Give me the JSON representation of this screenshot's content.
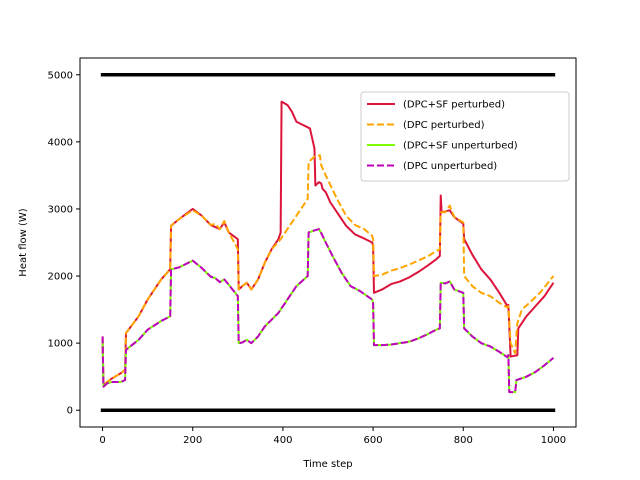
{
  "chart_data": {
    "type": "line",
    "xlabel": "Time step",
    "ylabel": "Heat flow (W)",
    "xlim": [
      -50,
      1050
    ],
    "ylim": [
      -250,
      5250
    ],
    "xticks": [
      0,
      200,
      400,
      600,
      800,
      1000
    ],
    "yticks": [
      0,
      1000,
      2000,
      3000,
      4000,
      5000
    ],
    "grid": false,
    "legend_position": "upper right",
    "bounds": [
      {
        "name": "upper bound",
        "y": 5000,
        "x": [
          0,
          1000
        ],
        "color": "#000000"
      },
      {
        "name": "lower bound",
        "y": 0,
        "x": [
          0,
          1000
        ],
        "color": "#000000"
      }
    ],
    "series": [
      {
        "name": "(DPC+SF perturbed)",
        "color": "#dc143c",
        "dash": "solid",
        "points": [
          [
            0,
            1100
          ],
          [
            2,
            380
          ],
          [
            10,
            420
          ],
          [
            20,
            470
          ],
          [
            40,
            550
          ],
          [
            50,
            600
          ],
          [
            52,
            1150
          ],
          [
            80,
            1400
          ],
          [
            100,
            1650
          ],
          [
            130,
            1950
          ],
          [
            150,
            2100
          ],
          [
            152,
            2750
          ],
          [
            170,
            2850
          ],
          [
            200,
            3000
          ],
          [
            220,
            2900
          ],
          [
            240,
            2760
          ],
          [
            260,
            2700
          ],
          [
            270,
            2800
          ],
          [
            280,
            2650
          ],
          [
            300,
            2550
          ],
          [
            302,
            1800
          ],
          [
            310,
            1850
          ],
          [
            320,
            1900
          ],
          [
            330,
            1800
          ],
          [
            345,
            1950
          ],
          [
            360,
            2200
          ],
          [
            375,
            2400
          ],
          [
            390,
            2550
          ],
          [
            395,
            2650
          ],
          [
            397,
            4600
          ],
          [
            410,
            4550
          ],
          [
            420,
            4450
          ],
          [
            430,
            4300
          ],
          [
            460,
            4200
          ],
          [
            470,
            3900
          ],
          [
            472,
            3350
          ],
          [
            480,
            3400
          ],
          [
            485,
            3380
          ],
          [
            488,
            3300
          ],
          [
            495,
            3250
          ],
          [
            505,
            3100
          ],
          [
            520,
            2950
          ],
          [
            540,
            2750
          ],
          [
            560,
            2620
          ],
          [
            580,
            2560
          ],
          [
            598,
            2500
          ],
          [
            600,
            2450
          ],
          [
            602,
            1750
          ],
          [
            620,
            1800
          ],
          [
            640,
            1880
          ],
          [
            660,
            1920
          ],
          [
            680,
            1980
          ],
          [
            700,
            2060
          ],
          [
            720,
            2150
          ],
          [
            740,
            2250
          ],
          [
            748,
            2300
          ],
          [
            750,
            3200
          ],
          [
            752,
            2950
          ],
          [
            770,
            2980
          ],
          [
            780,
            2880
          ],
          [
            800,
            2780
          ],
          [
            802,
            2550
          ],
          [
            820,
            2320
          ],
          [
            840,
            2100
          ],
          [
            860,
            1950
          ],
          [
            880,
            1750
          ],
          [
            898,
            1550
          ],
          [
            900,
            1570
          ],
          [
            905,
            800
          ],
          [
            920,
            820
          ],
          [
            922,
            1220
          ],
          [
            940,
            1400
          ],
          [
            960,
            1550
          ],
          [
            980,
            1700
          ],
          [
            1000,
            1900
          ]
        ]
      },
      {
        "name": "(DPC perturbed)",
        "color": "#ffa500",
        "dash": "dashed",
        "points": [
          [
            0,
            1100
          ],
          [
            2,
            380
          ],
          [
            10,
            420
          ],
          [
            20,
            470
          ],
          [
            40,
            550
          ],
          [
            50,
            600
          ],
          [
            52,
            1150
          ],
          [
            80,
            1400
          ],
          [
            100,
            1650
          ],
          [
            130,
            1950
          ],
          [
            150,
            2100
          ],
          [
            152,
            2750
          ],
          [
            170,
            2850
          ],
          [
            200,
            2980
          ],
          [
            220,
            2900
          ],
          [
            240,
            2760
          ],
          [
            250,
            2780
          ],
          [
            260,
            2700
          ],
          [
            270,
            2820
          ],
          [
            280,
            2650
          ],
          [
            300,
            2400
          ],
          [
            302,
            1800
          ],
          [
            310,
            1850
          ],
          [
            320,
            1900
          ],
          [
            330,
            1800
          ],
          [
            345,
            1950
          ],
          [
            360,
            2200
          ],
          [
            375,
            2400
          ],
          [
            395,
            2550
          ],
          [
            420,
            2800
          ],
          [
            440,
            3000
          ],
          [
            455,
            3150
          ],
          [
            457,
            3700
          ],
          [
            470,
            3780
          ],
          [
            482,
            3800
          ],
          [
            485,
            3650
          ],
          [
            495,
            3500
          ],
          [
            520,
            3150
          ],
          [
            540,
            2900
          ],
          [
            560,
            2760
          ],
          [
            580,
            2700
          ],
          [
            598,
            2600
          ],
          [
            600,
            2550
          ],
          [
            602,
            2000
          ],
          [
            620,
            2020
          ],
          [
            640,
            2080
          ],
          [
            660,
            2120
          ],
          [
            680,
            2170
          ],
          [
            700,
            2230
          ],
          [
            720,
            2290
          ],
          [
            740,
            2370
          ],
          [
            748,
            2400
          ],
          [
            750,
            2950
          ],
          [
            760,
            2950
          ],
          [
            770,
            3050
          ],
          [
            780,
            2880
          ],
          [
            800,
            2800
          ],
          [
            802,
            2000
          ],
          [
            820,
            1850
          ],
          [
            840,
            1750
          ],
          [
            860,
            1700
          ],
          [
            880,
            1600
          ],
          [
            898,
            1530
          ],
          [
            900,
            1550
          ],
          [
            905,
            1000
          ],
          [
            915,
            850
          ],
          [
            920,
            1300
          ],
          [
            930,
            1500
          ],
          [
            950,
            1620
          ],
          [
            970,
            1750
          ],
          [
            1000,
            2000
          ]
        ]
      },
      {
        "name": "(DPC+SF unperturbed)",
        "color": "#7cfc00",
        "dash": "solid",
        "points": [
          [
            0,
            1100
          ],
          [
            2,
            350
          ],
          [
            10,
            400
          ],
          [
            20,
            420
          ],
          [
            40,
            420
          ],
          [
            50,
            450
          ],
          [
            52,
            900
          ],
          [
            80,
            1050
          ],
          [
            100,
            1200
          ],
          [
            130,
            1330
          ],
          [
            150,
            1400
          ],
          [
            152,
            2100
          ],
          [
            170,
            2130
          ],
          [
            200,
            2230
          ],
          [
            220,
            2120
          ],
          [
            240,
            1990
          ],
          [
            250,
            1970
          ],
          [
            260,
            1910
          ],
          [
            270,
            1950
          ],
          [
            280,
            1870
          ],
          [
            300,
            1700
          ],
          [
            302,
            1000
          ],
          [
            310,
            1010
          ],
          [
            320,
            1050
          ],
          [
            330,
            1000
          ],
          [
            345,
            1100
          ],
          [
            360,
            1250
          ],
          [
            375,
            1350
          ],
          [
            390,
            1450
          ],
          [
            410,
            1650
          ],
          [
            430,
            1850
          ],
          [
            455,
            2000
          ],
          [
            457,
            2650
          ],
          [
            470,
            2680
          ],
          [
            480,
            2700
          ],
          [
            485,
            2640
          ],
          [
            495,
            2500
          ],
          [
            510,
            2300
          ],
          [
            530,
            2050
          ],
          [
            550,
            1850
          ],
          [
            570,
            1780
          ],
          [
            598,
            1650
          ],
          [
            600,
            1600
          ],
          [
            602,
            970
          ],
          [
            620,
            970
          ],
          [
            640,
            980
          ],
          [
            660,
            1000
          ],
          [
            680,
            1020
          ],
          [
            700,
            1070
          ],
          [
            720,
            1130
          ],
          [
            740,
            1200
          ],
          [
            748,
            1220
          ],
          [
            750,
            1900
          ],
          [
            760,
            1890
          ],
          [
            770,
            1920
          ],
          [
            780,
            1800
          ],
          [
            800,
            1750
          ],
          [
            802,
            1220
          ],
          [
            820,
            1100
          ],
          [
            840,
            1000
          ],
          [
            860,
            950
          ],
          [
            880,
            870
          ],
          [
            898,
            790
          ],
          [
            900,
            820
          ],
          [
            902,
            270
          ],
          [
            915,
            270
          ],
          [
            918,
            450
          ],
          [
            940,
            500
          ],
          [
            960,
            570
          ],
          [
            980,
            670
          ],
          [
            1000,
            780
          ]
        ]
      },
      {
        "name": "(DPC unperturbed)",
        "color": "#c000c0",
        "dash": "dashed",
        "points": [
          [
            0,
            1100
          ],
          [
            2,
            350
          ],
          [
            10,
            400
          ],
          [
            20,
            420
          ],
          [
            40,
            420
          ],
          [
            50,
            450
          ],
          [
            52,
            900
          ],
          [
            80,
            1050
          ],
          [
            100,
            1200
          ],
          [
            130,
            1330
          ],
          [
            150,
            1400
          ],
          [
            152,
            2100
          ],
          [
            170,
            2130
          ],
          [
            200,
            2230
          ],
          [
            220,
            2120
          ],
          [
            240,
            1990
          ],
          [
            250,
            1970
          ],
          [
            260,
            1910
          ],
          [
            270,
            1950
          ],
          [
            280,
            1870
          ],
          [
            300,
            1700
          ],
          [
            302,
            1000
          ],
          [
            310,
            1010
          ],
          [
            320,
            1050
          ],
          [
            330,
            1000
          ],
          [
            345,
            1100
          ],
          [
            360,
            1250
          ],
          [
            375,
            1350
          ],
          [
            390,
            1450
          ],
          [
            410,
            1650
          ],
          [
            430,
            1850
          ],
          [
            455,
            2000
          ],
          [
            457,
            2650
          ],
          [
            470,
            2680
          ],
          [
            480,
            2700
          ],
          [
            485,
            2640
          ],
          [
            495,
            2500
          ],
          [
            510,
            2300
          ],
          [
            530,
            2050
          ],
          [
            550,
            1850
          ],
          [
            570,
            1780
          ],
          [
            598,
            1650
          ],
          [
            600,
            1600
          ],
          [
            602,
            970
          ],
          [
            620,
            970
          ],
          [
            640,
            980
          ],
          [
            660,
            1000
          ],
          [
            680,
            1020
          ],
          [
            700,
            1070
          ],
          [
            720,
            1130
          ],
          [
            740,
            1200
          ],
          [
            748,
            1220
          ],
          [
            750,
            1900
          ],
          [
            760,
            1890
          ],
          [
            770,
            1920
          ],
          [
            780,
            1800
          ],
          [
            800,
            1750
          ],
          [
            802,
            1220
          ],
          [
            820,
            1100
          ],
          [
            840,
            1000
          ],
          [
            860,
            950
          ],
          [
            880,
            870
          ],
          [
            898,
            790
          ],
          [
            900,
            820
          ],
          [
            902,
            270
          ],
          [
            915,
            270
          ],
          [
            918,
            450
          ],
          [
            940,
            500
          ],
          [
            960,
            570
          ],
          [
            980,
            670
          ],
          [
            1000,
            780
          ]
        ]
      }
    ]
  }
}
